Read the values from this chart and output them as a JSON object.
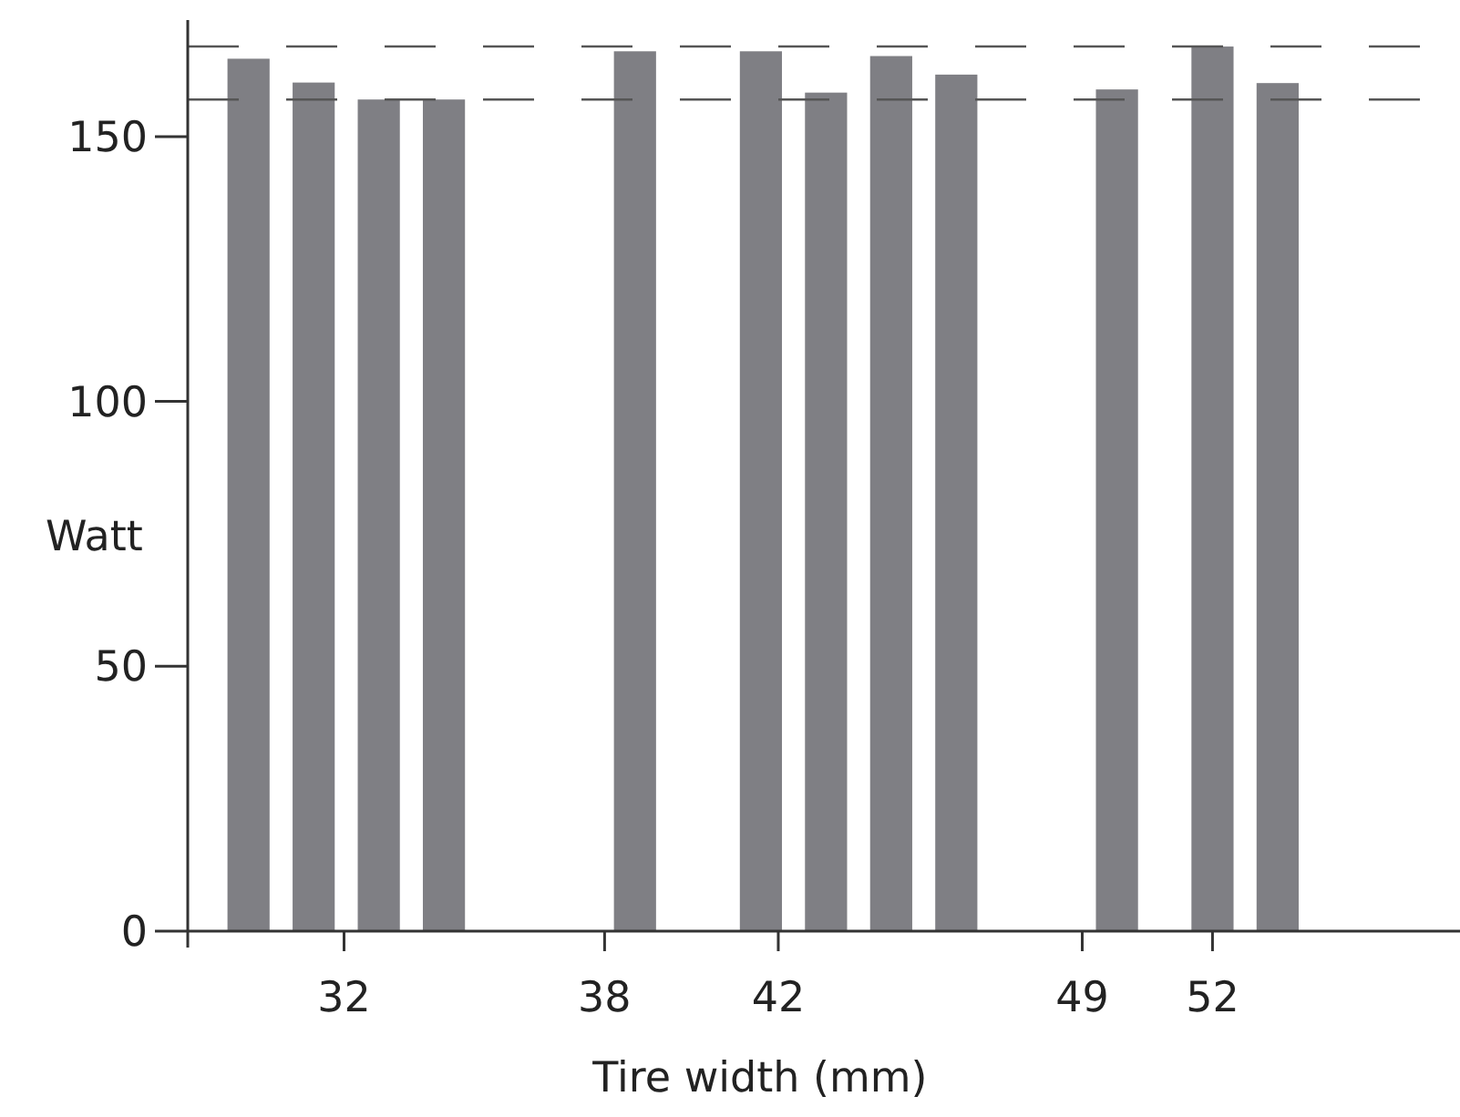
{
  "chart_data": {
    "type": "bar",
    "xlabel": "Tire width (mm)",
    "ylabel": "Watt",
    "x": [
      29.8,
      31.3,
      32.8,
      34.3,
      38.7,
      41.6,
      43.1,
      44.6,
      46.1,
      49.8,
      52.0,
      53.5
    ],
    "values": [
      164.7,
      160.2,
      157,
      157,
      166.1,
      166.1,
      158.3,
      165.2,
      161.7,
      158.9,
      167,
      160.1
    ],
    "color": "#7f7f84",
    "xlim": [
      28.4,
      57.7
    ],
    "xticks": [
      32,
      38,
      42,
      49,
      52
    ],
    "ylim": [
      0,
      172
    ],
    "yticks": [
      0,
      50,
      100,
      150
    ],
    "grid": false,
    "ref_lines": [
      {
        "axis": "y",
        "value": 167,
        "color": "#555555",
        "line_style": "dashed"
      },
      {
        "axis": "y",
        "value": 157,
        "color": "#555555",
        "line_style": "dashed"
      }
    ]
  }
}
